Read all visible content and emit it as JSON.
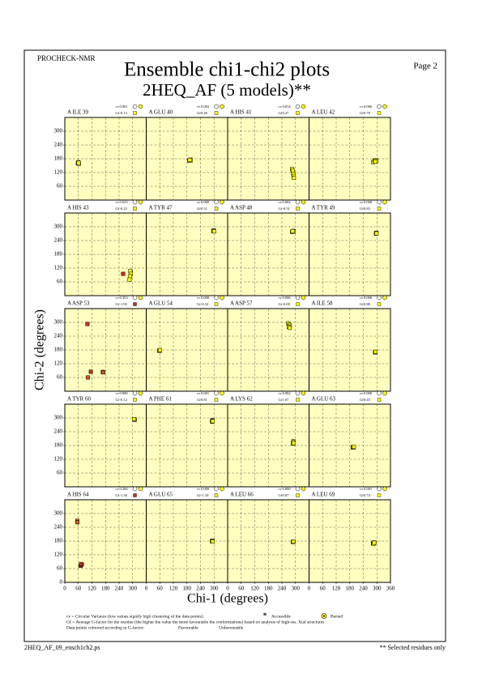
{
  "header": {
    "program": "PROCHECK-NMR",
    "page": "Page  2",
    "title": "Ensemble chi1-chi2 plots",
    "subtitle": "2HEQ_AF (5 models)**"
  },
  "chart_data": {
    "type": "scatter",
    "xlabel": "Chi-1 (degrees)",
    "ylabel": "Chi-2 (degrees)",
    "xlim": [
      0,
      360
    ],
    "ylim": [
      0,
      360
    ],
    "xticks": [
      0,
      60,
      120,
      180,
      240,
      300,
      360
    ],
    "yticks": [
      0,
      60,
      120,
      180,
      240,
      300
    ],
    "grid": true,
    "background": "#ffffc0",
    "cv_label": "cv",
    "gf_label": "Gf",
    "favourable_color": "#ffff00",
    "unfavourable_color": "#c03020",
    "panels": [
      {
        "title": "A ILE 39",
        "cv": "0.001",
        "gf": "-0.13",
        "gf_color": "#ffff00",
        "x": [
          58,
          60,
          62,
          60,
          61
        ],
        "y": [
          160,
          163,
          158,
          165,
          162
        ],
        "colors": [
          "#ffff00",
          "#ffff00",
          "#ffff00",
          "#ffff00",
          "#ffff00"
        ]
      },
      {
        "title": "A GLU 40",
        "cv": "0.002",
        "gf": "0.40",
        "gf_color": "#ffff00",
        "x": [
          190,
          193,
          195,
          197,
          192
        ],
        "y": [
          172,
          174,
          176,
          173,
          175
        ],
        "colors": [
          "#ffff00",
          "#ffff00",
          "#ffff00",
          "#ffff00",
          "#ffff00"
        ]
      },
      {
        "title": "A HIS 41",
        "cv": "0.014",
        "gf": "0.27",
        "gf_color": "#ffff00",
        "x": [
          285,
          288,
          290,
          292,
          293
        ],
        "y": [
          135,
          128,
          115,
          105,
          97
        ],
        "colors": [
          "#ffff00",
          "#ffff00",
          "#ffff00",
          "#ffff00",
          "#ffff00"
        ]
      },
      {
        "title": "A LEU 42",
        "cv": "0.006",
        "gf": "0.78",
        "gf_color": "#ffff00",
        "x": [
          283,
          290,
          295,
          298,
          292
        ],
        "y": [
          165,
          172,
          175,
          170,
          168
        ],
        "colors": [
          "#ffff00",
          "#ffff00",
          "#ffff00",
          "#ffff00",
          "#ffff00"
        ]
      },
      {
        "title": "A HIS 43",
        "cv": "0.023",
        "gf": "-0.23",
        "gf_color": "#ffff00",
        "x": [
          258,
          290,
          292,
          288,
          286
        ],
        "y": [
          95,
          108,
          95,
          85,
          70
        ],
        "colors": [
          "#c03020",
          "#ffff00",
          "#ffff00",
          "#ffff00",
          "#ffff00"
        ]
      },
      {
        "title": "A TYR 47",
        "cv": "0.000",
        "gf": "0.51",
        "gf_color": "#ffff00",
        "x": [
          298,
          299,
          297,
          298,
          300
        ],
        "y": [
          282,
          284,
          281,
          283,
          280
        ],
        "colors": [
          "#ffff00",
          "#ffff00",
          "#ffff00",
          "#ffff00",
          "#ffff00"
        ]
      },
      {
        "title": "A ASP 48",
        "cv": "0.002",
        "gf": "-0.51",
        "gf_color": "#ffff00",
        "x": [
          285,
          288,
          290,
          292,
          287
        ],
        "y": [
          278,
          280,
          282,
          279,
          281
        ],
        "colors": [
          "#ffff00",
          "#ffff00",
          "#ffff00",
          "#ffff00",
          "#ffff00"
        ]
      },
      {
        "title": "A TYR 49",
        "cv": "0.000",
        "gf": "0.83",
        "gf_color": "#ffff00",
        "x": [
          297,
          298,
          296,
          297,
          298
        ],
        "y": [
          272,
          274,
          270,
          273,
          271
        ],
        "colors": [
          "#ffff00",
          "#ffff00",
          "#ffff00",
          "#ffff00",
          "#ffff00"
        ]
      },
      {
        "title": "A ASP 53",
        "cv": "0.353",
        "gf": "-1.95",
        "gf_color": "#c03020",
        "x": [
          100,
          102,
          115,
          168,
          170
        ],
        "y": [
          293,
          60,
          85,
          84,
          82
        ],
        "colors": [
          "#c03020",
          "#c06020",
          "#c03020",
          "#c06020",
          "#c06020"
        ]
      },
      {
        "title": "A GLU 54",
        "cv": "0.000",
        "gf": "-0.32",
        "gf_color": "#ffff00",
        "x": [
          59,
          60,
          58,
          59,
          61
        ],
        "y": [
          177,
          178,
          176,
          177,
          179
        ],
        "colors": [
          "#ffff00",
          "#ffff00",
          "#ffff00",
          "#ffff00",
          "#ffff00"
        ]
      },
      {
        "title": "A ASP 57",
        "cv": "0.006",
        "gf": "-0.09",
        "gf_color": "#ffff00",
        "x": [
          268,
          272,
          275,
          270,
          274
        ],
        "y": [
          296,
          290,
          285,
          280,
          276
        ],
        "colors": [
          "#ffff00",
          "#ffff00",
          "#ffff00",
          "#ffff00",
          "#ffff00"
        ]
      },
      {
        "title": "A ILE 58",
        "cv": "0.000",
        "gf": "0.88",
        "gf_color": "#ffff00",
        "x": [
          293,
          294,
          292,
          293,
          294
        ],
        "y": [
          170,
          171,
          169,
          170,
          172
        ],
        "colors": [
          "#ffff00",
          "#ffff00",
          "#ffff00",
          "#ffff00",
          "#ffff00"
        ]
      },
      {
        "title": "A TYR 60",
        "cv": "0.000",
        "gf": "-0.12",
        "gf_color": "#ffff00",
        "x": [
          308,
          307,
          309,
          308,
          306
        ],
        "y": [
          293,
          294,
          292,
          293,
          295
        ],
        "colors": [
          "#ffff00",
          "#ffff00",
          "#ffff00",
          "#ffff00",
          "#ffff00"
        ]
      },
      {
        "title": "A PHE 61",
        "cv": "0.001",
        "gf": "0.81",
        "gf_color": "#ffff00",
        "x": [
          292,
          293,
          291,
          292,
          294
        ],
        "y": [
          287,
          290,
          284,
          288,
          286
        ],
        "colors": [
          "#ffff00",
          "#ffff00",
          "#ffff00",
          "#ffff00",
          "#ffff00"
        ]
      },
      {
        "title": "A LYS 62",
        "cv": "0.002",
        "gf": "1.07",
        "gf_color": "#ffff00",
        "x": [
          290,
          291,
          289,
          290,
          292
        ],
        "y": [
          193,
          198,
          188,
          195,
          190
        ],
        "colors": [
          "#ffff00",
          "#ffff00",
          "#ffff00",
          "#ffff00",
          "#ffff00"
        ]
      },
      {
        "title": "A GLU 63",
        "cv": "0.000",
        "gf": "0.45",
        "gf_color": "#ffff00",
        "x": [
          195,
          197,
          193,
          196,
          198
        ],
        "y": [
          172,
          173,
          171,
          172,
          174
        ],
        "colors": [
          "#ffff00",
          "#ffff00",
          "#ffff00",
          "#ffff00",
          "#ffff00"
        ]
      },
      {
        "title": "A HIS 64",
        "cv": "0.284",
        "gf": "-1.38",
        "gf_color": "#c03020",
        "x": [
          55,
          56,
          70,
          75,
          72
        ],
        "y": [
          268,
          262,
          72,
          78,
          80
        ],
        "colors": [
          "#c06020",
          "#c06020",
          "#c03020",
          "#c03020",
          "#c03020"
        ]
      },
      {
        "title": "A GLU 65",
        "cv": "0.000",
        "gf": "-1.10",
        "gf_color": "#ffff00",
        "x": [
          292,
          293,
          291,
          292,
          294
        ],
        "y": [
          180,
          182,
          179,
          181,
          178
        ],
        "colors": [
          "#ffff00",
          "#ffff00",
          "#ffff00",
          "#ffff00",
          "#ffff00"
        ]
      },
      {
        "title": "A LEU 66",
        "cv": "0.000",
        "gf": "0.87",
        "gf_color": "#ffff00",
        "x": [
          290,
          291,
          289,
          290,
          291
        ],
        "y": [
          177,
          178,
          176,
          177,
          178
        ],
        "colors": [
          "#ffff00",
          "#ffff00",
          "#ffff00",
          "#ffff00",
          "#ffff00"
        ]
      },
      {
        "title": "A LEU 69",
        "cv": "0.001",
        "gf": "0.74",
        "gf_color": "#ffff00",
        "x": [
          283,
          286,
          289,
          285,
          288
        ],
        "y": [
          170,
          172,
          174,
          168,
          173
        ],
        "colors": [
          "#ffff00",
          "#ffff00",
          "#ffff00",
          "#ffff00",
          "#ffff00"
        ]
      }
    ]
  },
  "legend": {
    "cv_text": "cv = Circular Variance (low values signify high clustering of the data points).",
    "accessible": "Accessible",
    "buried": "Buried",
    "gf_text": "Gf = Average G-factor for the residue (the higher the value the more favourable the conformations)  based on analysis of high-res. Xtal structures",
    "colour_text": "Data points coloured according to G-factor:",
    "favourable": "Favourable",
    "unfavourable": "Unfavourable"
  },
  "footer": {
    "file": "2HEQ_AF_09_ensch1ch2.ps",
    "note": "** Selected residues only"
  }
}
